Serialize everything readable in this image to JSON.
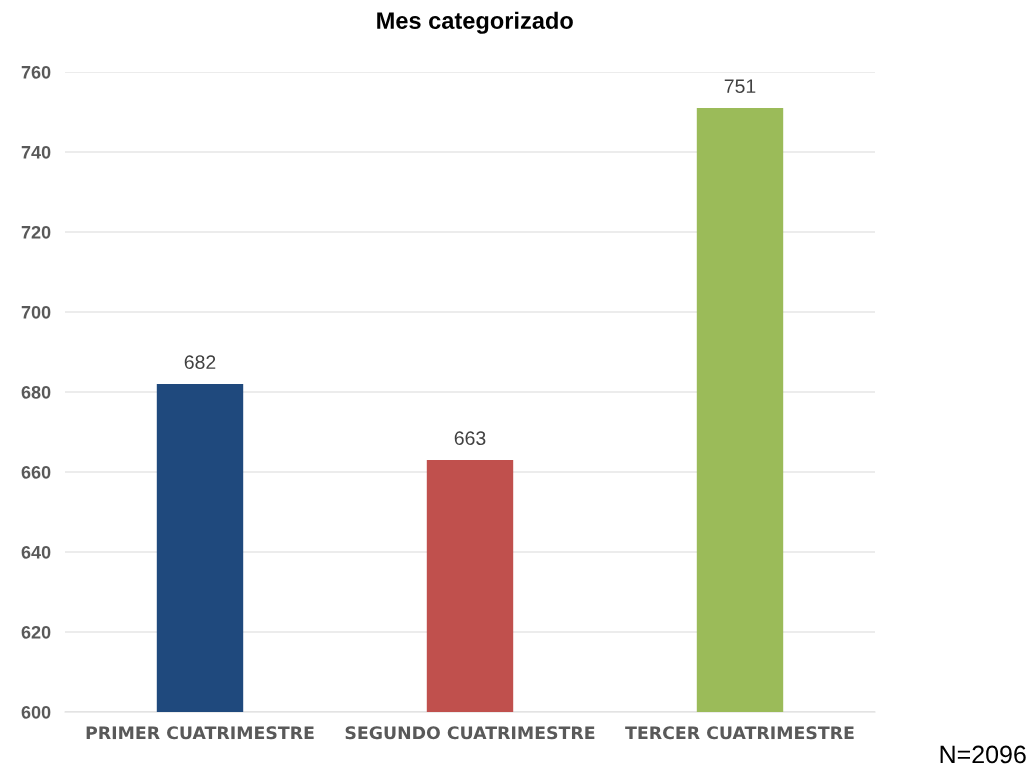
{
  "chart_data": {
    "type": "bar",
    "title": "Mes categorizado",
    "categories": [
      "PRIMER CUATRIMESTRE",
      "SEGUNDO CUATRIMESTRE",
      "TERCER CUATRIMESTRE"
    ],
    "values": [
      682,
      663,
      751
    ],
    "colors": [
      "#1f497d",
      "#c0504d",
      "#9bbb59"
    ],
    "ylim": [
      600,
      760
    ],
    "yticks": [
      600,
      620,
      640,
      660,
      680,
      700,
      720,
      740,
      760
    ],
    "grid": "y",
    "data_labels": true,
    "annotations": [
      "N=2096"
    ]
  }
}
